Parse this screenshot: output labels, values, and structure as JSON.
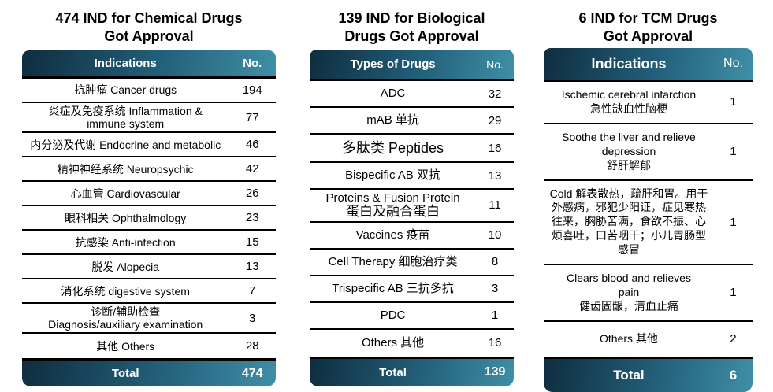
{
  "colors": {
    "header_gradient_left": "#0f2d3f",
    "header_gradient_right": "#3f8fa6",
    "header_text": "#ffffff",
    "row_border": "#000000",
    "body_text": "#000000",
    "background": "#ffffff"
  },
  "chart_data": [
    {
      "type": "table",
      "title": "474 IND for Chemical Drugs\nGot Approval",
      "columns": {
        "label": "Indications",
        "no": "No."
      },
      "rows": [
        {
          "label": "抗肿瘤 Cancer drugs",
          "no": "194"
        },
        {
          "label": "炎症及免疫系统 Inflammation &\nimmune system",
          "no": "77"
        },
        {
          "label": "内分泌及代谢 Endocrine and metabolic",
          "no": "46"
        },
        {
          "label": "精神神经系统 Neuropsychic",
          "no": "42"
        },
        {
          "label": "心血管 Cardiovascular",
          "no": "26"
        },
        {
          "label": "眼科相关 Ophthalmology",
          "no": "23"
        },
        {
          "label": "抗感染 Anti-infection",
          "no": "15"
        },
        {
          "label": "脱发 Alopecia",
          "no": "13"
        },
        {
          "label": "消化系统 digestive system",
          "no": "7"
        },
        {
          "label": "诊断/辅助检查\nDiagnosis/auxiliary examination",
          "no": "3"
        },
        {
          "label": "其他 Others",
          "no": "28"
        }
      ],
      "total": {
        "label": "Total",
        "no": "474"
      }
    },
    {
      "type": "table",
      "title": "139 IND for Biological\nDrugs Got Approval",
      "columns": {
        "label": "Types of Drugs",
        "no": "No."
      },
      "rows": [
        {
          "label": "ADC",
          "no": "32"
        },
        {
          "label": "mAB 单抗",
          "no": "29"
        },
        {
          "label": "多肽类 Peptides",
          "no": "16",
          "large_font": true
        },
        {
          "label": "Bispecific AB 双抗",
          "no": "13"
        },
        {
          "label": "Proteins & Fusion Protein",
          "label2": "蛋白及融合蛋白",
          "no": "11"
        },
        {
          "label": "Vaccines 疫苗",
          "no": "10"
        },
        {
          "label": "Cell Therapy 细胞治疗类",
          "no": "8"
        },
        {
          "label": "Trispecific AB 三抗多抗",
          "no": "3"
        },
        {
          "label": "PDC",
          "no": "1"
        },
        {
          "label": "Others 其他",
          "no": "16"
        }
      ],
      "total": {
        "label": "Total",
        "no": "139"
      }
    },
    {
      "type": "table",
      "title": "6 IND for TCM Drugs\nGot Approval",
      "columns": {
        "label": "Indications",
        "no": "No."
      },
      "rows": [
        {
          "label": "Ischemic cerebral infarction\n急性缺血性脑梗",
          "no": "1"
        },
        {
          "label": "Soothe the liver and relieve\ndepression\n舒肝解郁",
          "no": "1"
        },
        {
          "label": "Cold 解表散热，疏肝和胃。用于外感病，邪犯少阳证，症见寒热往来，胸胁苦满，食欲不振、心烦喜吐，口苦咽干；小儿胃肠型感冒",
          "no": "1"
        },
        {
          "label": "Clears blood and relieves\npain\n健齿固龈，清血止痛",
          "no": "1"
        },
        {
          "label": "Others 其他",
          "no": "2"
        }
      ],
      "total": {
        "label": "Total",
        "no": "6"
      }
    }
  ]
}
